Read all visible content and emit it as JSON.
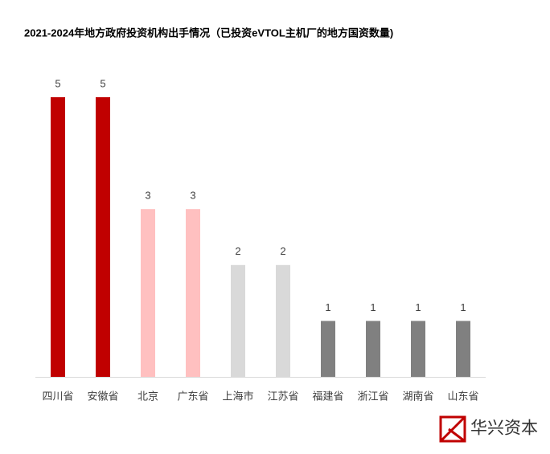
{
  "chart_data": {
    "type": "bar",
    "title": "2021-2024年地方政府投资机构出手情况（已投资eVTOL主机厂的地方国资数量)",
    "categories": [
      "四川省",
      "安徽省",
      "北京",
      "广东省",
      "上海市",
      "江苏省",
      "福建省",
      "浙江省",
      "湖南省",
      "山东省"
    ],
    "values": [
      5,
      5,
      3,
      3,
      2,
      2,
      1,
      1,
      1,
      1
    ],
    "colors": [
      "#c00000",
      "#c00000",
      "#ffc0c0",
      "#ffc0c0",
      "#d9d9d9",
      "#d9d9d9",
      "#808080",
      "#808080",
      "#808080",
      "#808080"
    ],
    "ylim": [
      0,
      5
    ],
    "data_labels": true
  },
  "logo_text": "华兴资本"
}
